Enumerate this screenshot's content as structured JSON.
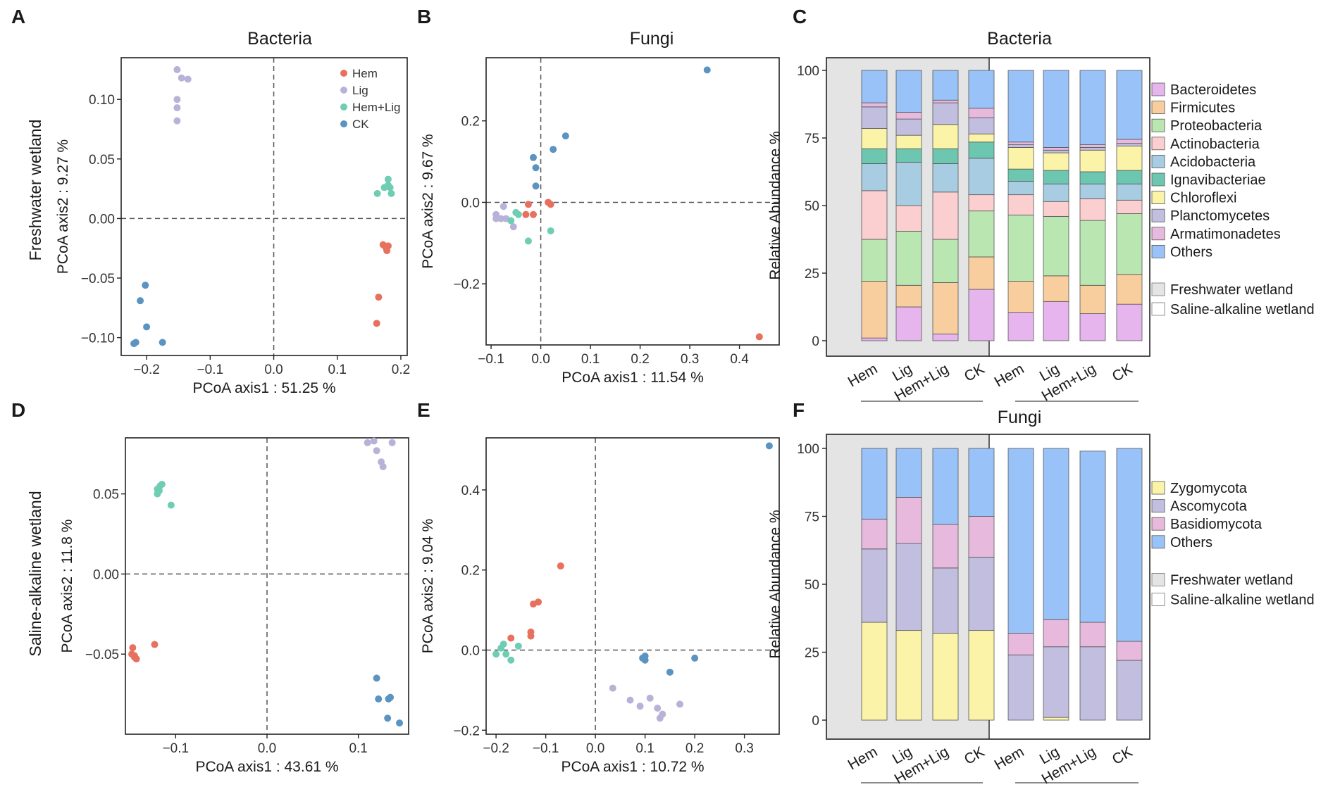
{
  "figure": {
    "panel_letters": [
      "A",
      "B",
      "C",
      "D",
      "E",
      "F"
    ],
    "row_labels": [
      "Freshwater wetland",
      "Saline-alkaline wetland"
    ]
  },
  "colors": {
    "groups": {
      "Hem": "#e8705e",
      "Lig": "#b8b2d8",
      "Hem+Lig": "#6fcdb4",
      "CK": "#5b93c1"
    },
    "bacteria": [
      "#e7b5ee",
      "#f9ce9e",
      "#b9e6b1",
      "#fbcfcf",
      "#a8cde2",
      "#6dc7b0",
      "#fbf3a8",
      "#c2bedf",
      "#e7b9dc",
      "#99c3f8"
    ],
    "fungi": [
      "#fbf3a8",
      "#c2bedf",
      "#e7b9dc",
      "#99c3f8"
    ],
    "freshwater_bg": "#e4e4e4"
  },
  "chart_data": [
    {
      "id": "A",
      "type": "scatter",
      "title": "Bacteria",
      "xlabel": "PCoA axis1 : 51.25 %",
      "ylabel": "PCoA axis2 : 9.27 %",
      "xlim": [
        -0.24,
        0.21
      ],
      "ylim": [
        -0.115,
        0.135
      ],
      "xticks": [
        -0.2,
        -0.1,
        0.0,
        0.1,
        0.2
      ],
      "xtick_labels": [
        "−0.2",
        "−0.1",
        "0.0",
        "0.1",
        "0.2"
      ],
      "yticks": [
        -0.1,
        -0.05,
        0.0,
        0.05,
        0.1
      ],
      "ytick_labels": [
        "−0.10",
        "−0.05",
        "0.00",
        "0.05",
        "0.10"
      ],
      "legend": [
        "Hem",
        "Lig",
        "Hem+Lig",
        "CK"
      ],
      "series": [
        {
          "name": "Hem",
          "points": [
            [
              0.172,
              -0.022
            ],
            [
              0.18,
              -0.023
            ],
            [
              0.176,
              -0.024
            ],
            [
              0.178,
              -0.027
            ],
            [
              0.165,
              -0.066
            ],
            [
              0.162,
              -0.088
            ]
          ]
        },
        {
          "name": "Lig",
          "points": [
            [
              -0.152,
              0.125
            ],
            [
              -0.145,
              0.118
            ],
            [
              -0.135,
              0.117
            ],
            [
              -0.152,
              0.1
            ],
            [
              -0.152,
              0.093
            ],
            [
              -0.152,
              0.082
            ]
          ]
        },
        {
          "name": "Hem+Lig",
          "points": [
            [
              0.163,
              0.021
            ],
            [
              0.18,
              0.033
            ],
            [
              0.174,
              0.026
            ],
            [
              0.18,
              0.028
            ],
            [
              0.185,
              0.021
            ],
            [
              0.183,
              0.026
            ]
          ]
        },
        {
          "name": "CK",
          "points": [
            [
              -0.202,
              -0.056
            ],
            [
              -0.21,
              -0.069
            ],
            [
              -0.2,
              -0.091
            ],
            [
              -0.175,
              -0.104
            ],
            [
              -0.22,
              -0.105
            ],
            [
              -0.217,
              -0.104
            ]
          ]
        }
      ]
    },
    {
      "id": "B",
      "type": "scatter",
      "title": "Fungi",
      "xlabel": "PCoA axis1 : 11.54 %",
      "ylabel": "PCoA axis2 : 9.67 %",
      "xlim": [
        -0.11,
        0.48
      ],
      "ylim": [
        -0.35,
        0.355
      ],
      "xticks": [
        -0.1,
        0.0,
        0.1,
        0.2,
        0.3,
        0.4
      ],
      "xtick_labels": [
        "−0.1",
        "0.0",
        "0.1",
        "0.2",
        "0.3",
        "0.4"
      ],
      "yticks": [
        -0.2,
        0.0,
        0.2
      ],
      "ytick_labels": [
        "−0.2",
        "0.0",
        "0.2"
      ],
      "series": [
        {
          "name": "Hem",
          "points": [
            [
              -0.025,
              -0.005
            ],
            [
              -0.015,
              -0.03
            ],
            [
              -0.03,
              -0.03
            ],
            [
              0.015,
              0.0
            ],
            [
              0.02,
              -0.005
            ],
            [
              0.44,
              -0.33
            ]
          ]
        },
        {
          "name": "Lig",
          "points": [
            [
              -0.09,
              -0.03
            ],
            [
              -0.075,
              -0.01
            ],
            [
              -0.08,
              -0.04
            ],
            [
              -0.07,
              -0.04
            ],
            [
              -0.055,
              -0.06
            ],
            [
              -0.09,
              -0.04
            ]
          ]
        },
        {
          "name": "Hem+Lig",
          "points": [
            [
              -0.05,
              -0.025
            ],
            [
              -0.045,
              -0.03
            ],
            [
              -0.06,
              -0.045
            ],
            [
              -0.025,
              -0.095
            ],
            [
              0.02,
              -0.07
            ]
          ]
        },
        {
          "name": "CK",
          "points": [
            [
              -0.015,
              0.11
            ],
            [
              -0.01,
              0.085
            ],
            [
              -0.01,
              0.04
            ],
            [
              0.025,
              0.13
            ],
            [
              0.05,
              0.163
            ],
            [
              0.335,
              0.325
            ]
          ]
        }
      ]
    },
    {
      "id": "C",
      "type": "bar",
      "stacked": true,
      "title": "Bacteria",
      "ylabel": "Relative Abundance %",
      "ylim": [
        0,
        100
      ],
      "yticks": [
        0,
        25,
        50,
        75,
        100
      ],
      "categories": [
        "Hem",
        "Lig",
        "Hem+Lig",
        "CK",
        "Hem",
        "Lig",
        "Hem+Lig",
        "CK"
      ],
      "groups": [
        "Freshwater wetland",
        "Saline-alkaline wetland"
      ],
      "series": [
        {
          "name": "Bacteroidetes",
          "values": [
            1,
            12.5,
            2.5,
            19,
            10.5,
            14.5,
            10,
            13.5
          ]
        },
        {
          "name": "Firmicutes",
          "values": [
            21,
            8,
            19,
            12,
            11.5,
            9.5,
            10.5,
            11
          ]
        },
        {
          "name": "Proteobacteria",
          "values": [
            15.5,
            20,
            16,
            17,
            24.5,
            22,
            24,
            22.5
          ]
        },
        {
          "name": "Actinobacteria",
          "values": [
            18,
            9.5,
            17.5,
            6,
            7.5,
            5.5,
            8,
            5
          ]
        },
        {
          "name": "Acidobacteria",
          "values": [
            10,
            16,
            10.5,
            13.5,
            5,
            6.5,
            5.5,
            6
          ]
        },
        {
          "name": "Ignavibacteriae",
          "values": [
            5.5,
            5,
            5.5,
            6,
            4.5,
            5,
            4.5,
            5
          ]
        },
        {
          "name": "Chloroflexi",
          "values": [
            7.5,
            5,
            9,
            3,
            8,
            6.5,
            8,
            9
          ]
        },
        {
          "name": "Planctomycetes",
          "values": [
            8,
            6,
            8,
            6,
            1,
            1,
            1,
            1
          ]
        },
        {
          "name": "Armatimonadetes",
          "values": [
            1.5,
            2.5,
            1,
            3.5,
            1,
            1,
            1,
            1.5
          ]
        },
        {
          "name": "Others",
          "values": [
            12,
            15.5,
            11,
            14,
            26.5,
            28.5,
            27.5,
            25.5
          ]
        }
      ],
      "legend_groups": [
        "Freshwater wetland",
        "Saline-alkaline wetland"
      ]
    },
    {
      "id": "D",
      "type": "scatter",
      "title": "",
      "xlabel": "PCoA axis1 : 43.61 %",
      "ylabel": "PCoA axis2 : 11.8 %",
      "xlim": [
        -0.155,
        0.155
      ],
      "ylim": [
        -0.1,
        0.085
      ],
      "xticks": [
        -0.1,
        0.0,
        0.1
      ],
      "xtick_labels": [
        "−0.1",
        "0.0",
        "0.1"
      ],
      "yticks": [
        -0.05,
        0.0,
        0.05
      ],
      "ytick_labels": [
        "−0.05",
        "0.00",
        "0.05"
      ],
      "series": [
        {
          "name": "Hem",
          "points": [
            [
              -0.147,
              -0.046
            ],
            [
              -0.148,
              -0.05
            ],
            [
              -0.145,
              -0.052
            ],
            [
              -0.143,
              -0.053
            ],
            [
              -0.145,
              -0.051
            ],
            [
              -0.123,
              -0.044
            ]
          ]
        },
        {
          "name": "Lig",
          "points": [
            [
              0.11,
              0.082
            ],
            [
              0.117,
              0.083
            ],
            [
              0.12,
              0.077
            ],
            [
              0.137,
              0.082
            ],
            [
              0.125,
              0.07
            ],
            [
              0.127,
              0.067
            ]
          ]
        },
        {
          "name": "Hem+Lig",
          "points": [
            [
              -0.12,
              0.05
            ],
            [
              -0.12,
              0.053
            ],
            [
              -0.117,
              0.055
            ],
            [
              -0.115,
              0.056
            ],
            [
              -0.118,
              0.052
            ],
            [
              -0.105,
              0.043
            ]
          ]
        },
        {
          "name": "CK",
          "points": [
            [
              0.12,
              -0.065
            ],
            [
              0.122,
              -0.078
            ],
            [
              0.133,
              -0.078
            ],
            [
              0.135,
              -0.077
            ],
            [
              0.132,
              -0.09
            ],
            [
              0.145,
              -0.093
            ]
          ]
        }
      ]
    },
    {
      "id": "E",
      "type": "scatter",
      "title": "",
      "xlabel": "PCoA axis1 : 10.72 %",
      "ylabel": "PCoA axis2 : 9.04 %",
      "xlim": [
        -0.22,
        0.37
      ],
      "ylim": [
        -0.21,
        0.53
      ],
      "xticks": [
        -0.2,
        -0.1,
        0.0,
        0.1,
        0.2,
        0.3
      ],
      "xtick_labels": [
        "−0.2",
        "−0.1",
        "0.0",
        "0.1",
        "0.2",
        "0.3"
      ],
      "yticks": [
        -0.2,
        0.0,
        0.2,
        0.4
      ],
      "ytick_labels": [
        "−0.2",
        "0.0",
        "0.2",
        "0.4"
      ],
      "series": [
        {
          "name": "Hem",
          "points": [
            [
              -0.07,
              0.21
            ],
            [
              -0.115,
              0.12
            ],
            [
              -0.125,
              0.115
            ],
            [
              -0.13,
              0.045
            ],
            [
              -0.13,
              0.035
            ],
            [
              -0.17,
              0.03
            ]
          ]
        },
        {
          "name": "Lig",
          "points": [
            [
              0.035,
              -0.095
            ],
            [
              0.07,
              -0.125
            ],
            [
              0.09,
              -0.14
            ],
            [
              0.11,
              -0.12
            ],
            [
              0.125,
              -0.145
            ],
            [
              0.13,
              -0.17
            ],
            [
              0.135,
              -0.16
            ],
            [
              0.17,
              -0.135
            ]
          ]
        },
        {
          "name": "Hem+Lig",
          "points": [
            [
              -0.2,
              -0.01
            ],
            [
              -0.19,
              0.005
            ],
            [
              -0.185,
              0.015
            ],
            [
              -0.18,
              -0.01
            ],
            [
              -0.17,
              -0.025
            ],
            [
              -0.155,
              0.01
            ]
          ]
        },
        {
          "name": "CK",
          "points": [
            [
              0.095,
              -0.02
            ],
            [
              0.1,
              -0.025
            ],
            [
              0.1,
              -0.015
            ],
            [
              0.15,
              -0.055
            ],
            [
              0.2,
              -0.02
            ],
            [
              0.35,
              0.51
            ]
          ]
        }
      ]
    },
    {
      "id": "F",
      "type": "bar",
      "stacked": true,
      "title": "Fungi",
      "ylabel": "Relative Abundance %",
      "ylim": [
        0,
        100
      ],
      "yticks": [
        0,
        25,
        50,
        75,
        100
      ],
      "categories": [
        "Hem",
        "Lig",
        "Hem+Lig",
        "CK",
        "Hem",
        "Lig",
        "Hem+Lig",
        "CK"
      ],
      "groups": [
        "Freshwater wetland",
        "Saline-alkaline wetland"
      ],
      "series": [
        {
          "name": "Zygomycota",
          "values": [
            36,
            33,
            32,
            33,
            0,
            1,
            0,
            0
          ]
        },
        {
          "name": "Ascomycota",
          "values": [
            27,
            32,
            24,
            27,
            24,
            26,
            27,
            22
          ]
        },
        {
          "name": "Basidiomycota",
          "values": [
            11,
            17,
            16,
            15,
            8,
            10,
            9,
            7
          ]
        },
        {
          "name": "Others",
          "values": [
            26,
            18,
            28,
            25,
            68,
            63,
            63,
            71
          ]
        }
      ],
      "legend_groups": [
        "Freshwater wetland",
        "Saline-alkaline wetland"
      ]
    }
  ]
}
